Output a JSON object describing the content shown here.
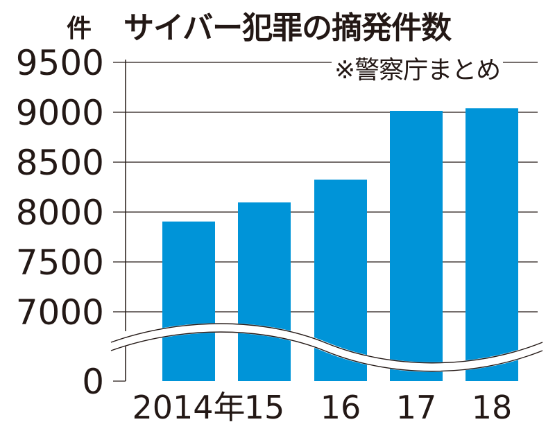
{
  "title": "サイバー犯罪の摘発件数",
  "unit_label": "件",
  "source_note": "※警察庁まとめ",
  "colors": {
    "bar": "#0094d8",
    "grid": "#231815",
    "text": "#231815"
  },
  "chart_data": {
    "type": "bar",
    "title": "サイバー犯罪の摘発件数",
    "ylabel": "件",
    "categories": [
      "2014年",
      "15",
      "16",
      "17",
      "18"
    ],
    "values": [
      7905,
      8096,
      8324,
      9014,
      9040
    ],
    "yticks": [
      "9500",
      "9000",
      "8500",
      "8000",
      "7500",
      "7000",
      "0"
    ],
    "ylim": [
      7000,
      9500
    ],
    "axis_break": true,
    "grid": true
  }
}
